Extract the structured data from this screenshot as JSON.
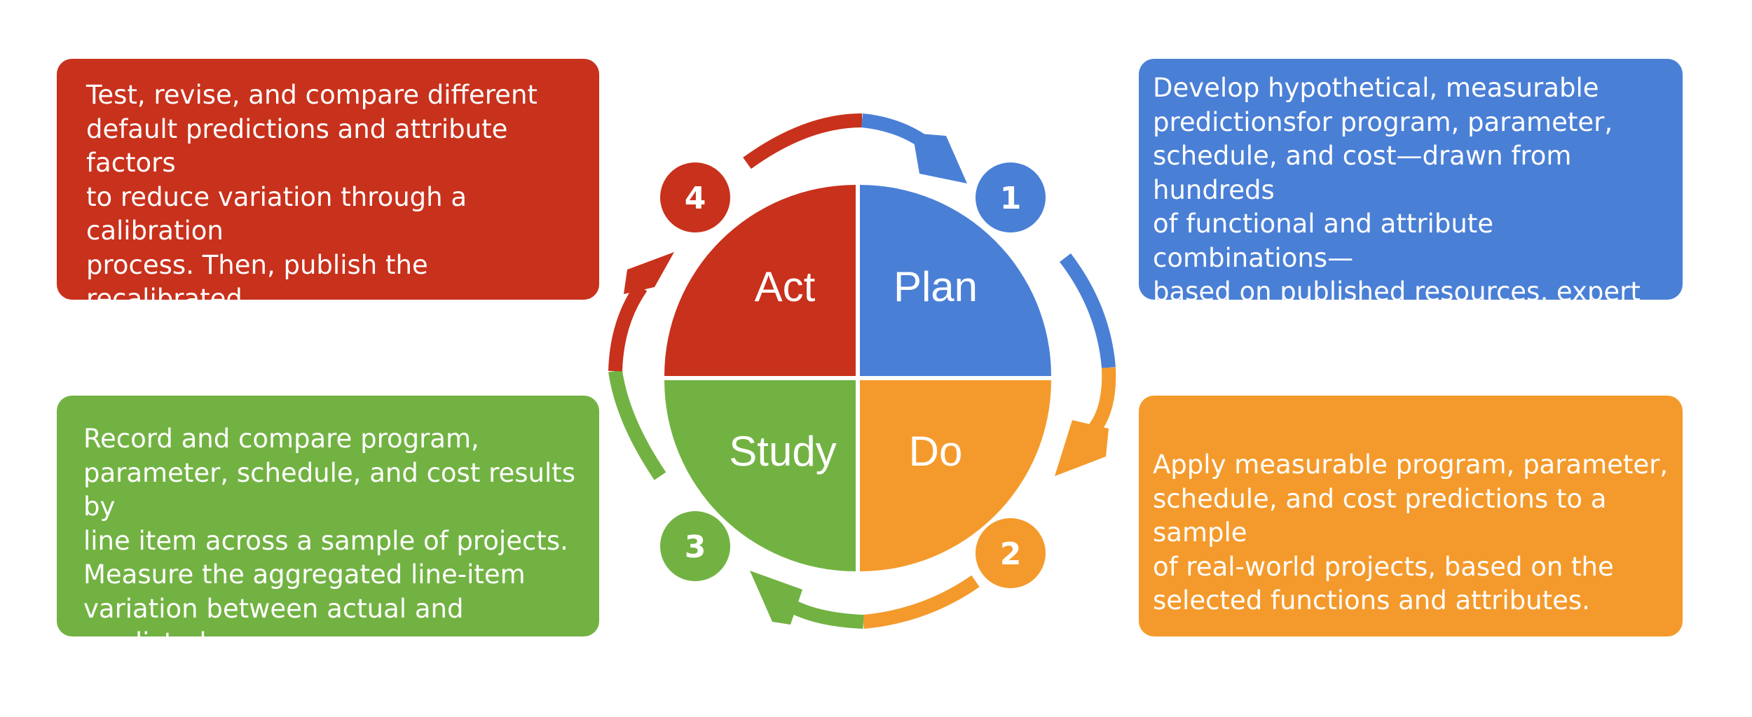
{
  "colors": {
    "act": "#c8311c",
    "plan": "#4a7fd6",
    "do": "#f49a2c",
    "study": "#72b243"
  },
  "quadrants": {
    "act": "Act",
    "plan": "Plan",
    "do": "Do",
    "study": "Study"
  },
  "steps": {
    "plan": "1",
    "do": "2",
    "study": "3",
    "act": "4"
  },
  "descriptions": {
    "act": "Test, revise, and compare different\ndefault predictions and attribute factors\nto reduce variation through a calibration\nprocess. Then, publish the recalibrated\ndefaults, algorithms, and attribute\nfactors.",
    "plan": "Develop hypothetical, measurable\npredictionsfor program, parameter,\nschedule, and cost—drawn from hundreds\nof functional and attribute combinations—\nbased on published resources, expert input,\nand real-world observations.",
    "study": "Record and compare program,\nparameter, schedule, and cost results by\nline item across a sample of projects.\nMeasure the aggregated line-item\nvariation between actual and predicted\nvalues across multiple projects.",
    "do": "Apply measurable program, parameter,\nschedule, and cost predictions to a sample\nof real-world projects, based on the\nselected functions and attributes."
  }
}
